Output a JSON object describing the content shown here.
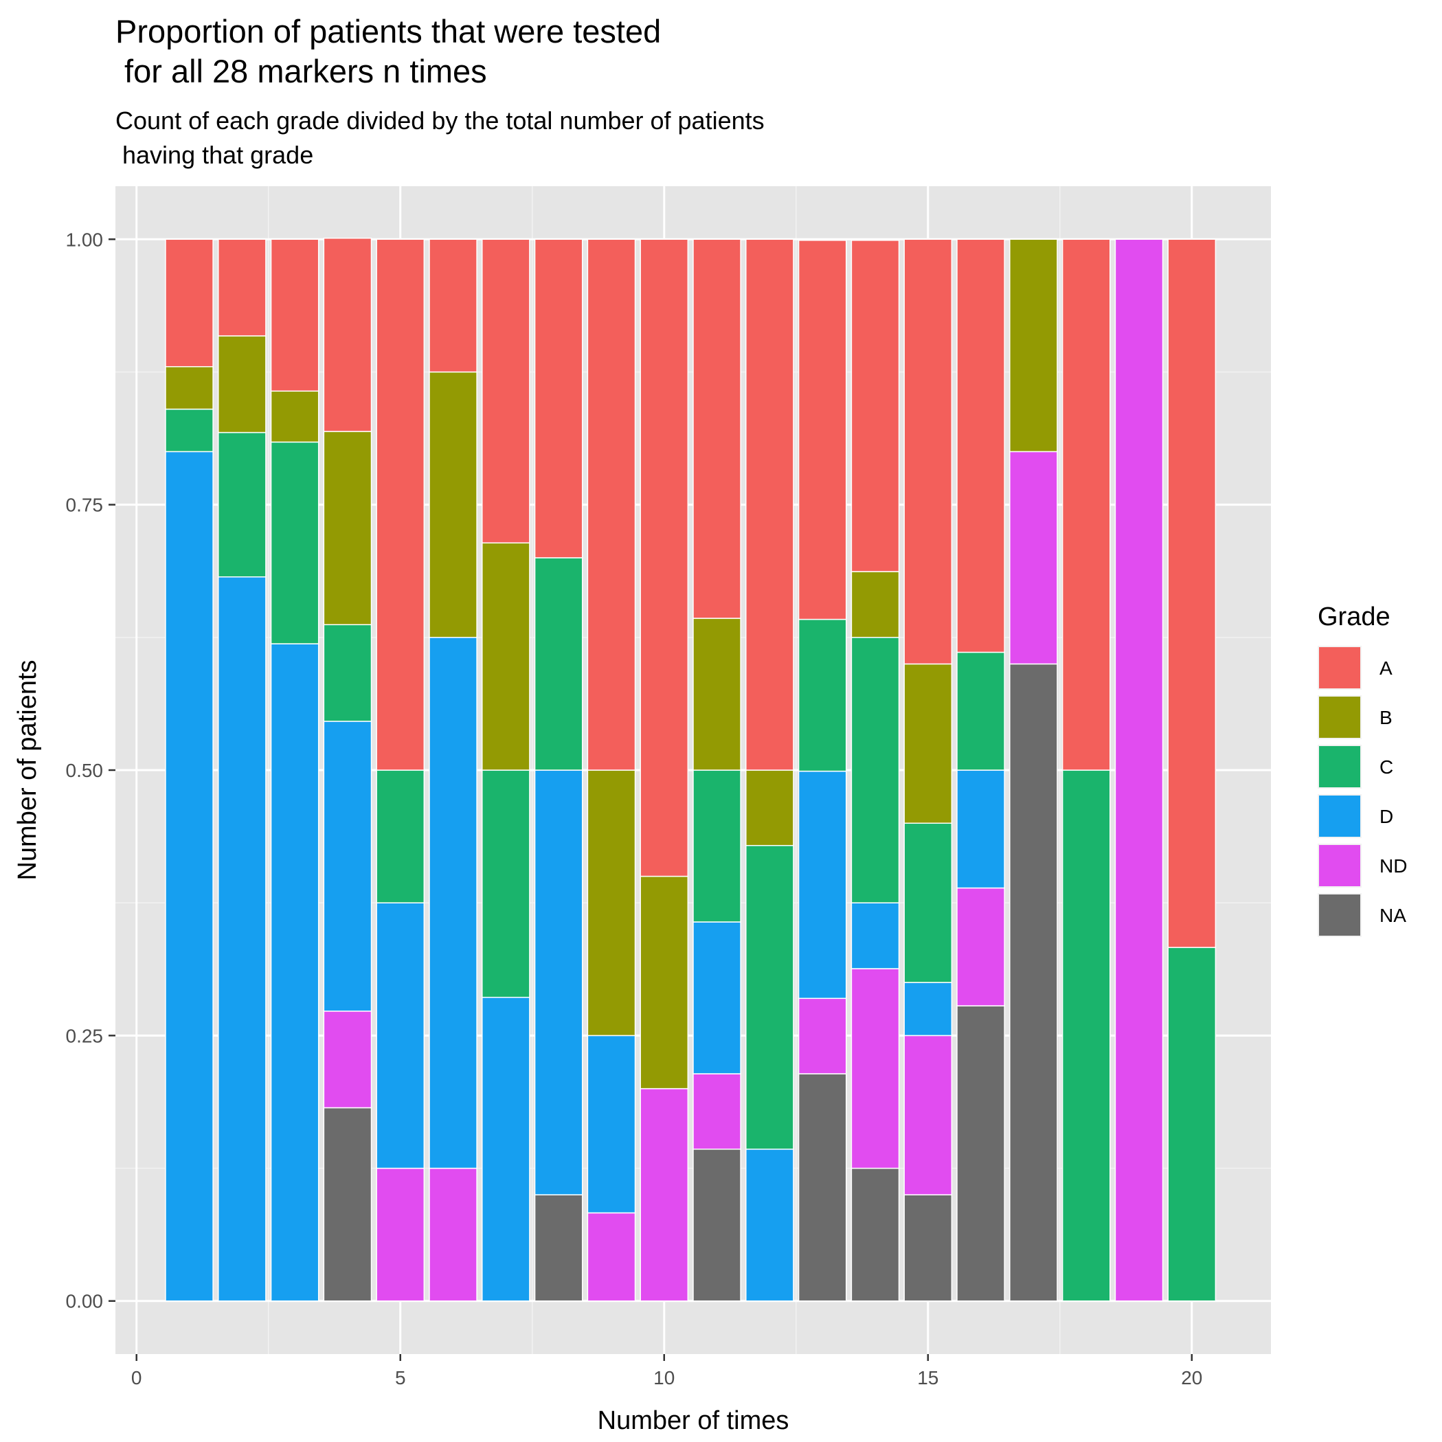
{
  "chart_data": {
    "type": "bar",
    "stacked": true,
    "title_lines": [
      "Proportion of patients that were tested",
      " for all 28 markers n times"
    ],
    "subtitle_lines": [
      "Count of each grade divided by the total number of patients",
      " having that grade"
    ],
    "xlabel": "Number of times",
    "ylabel": "Number of patients",
    "xlim": [
      -0.4,
      21.5
    ],
    "ylim": [
      -0.05,
      1.05
    ],
    "x_ticks": [
      0,
      5,
      10,
      15,
      20
    ],
    "x_tick_labels": [
      "0",
      "5",
      "10",
      "15",
      "20"
    ],
    "y_ticks": [
      0,
      0.25,
      0.5,
      0.75,
      1.0
    ],
    "y_tick_labels": [
      "0.00",
      "0.25",
      "0.50",
      "0.75",
      "1.00"
    ],
    "grid": true,
    "background": "#e5e5e5",
    "legend": {
      "title": "Grade",
      "position": "right",
      "items": [
        {
          "label": "A",
          "color": "#f35f5b"
        },
        {
          "label": "B",
          "color": "#939a03"
        },
        {
          "label": "C",
          "color": "#1ab46c"
        },
        {
          "label": "D",
          "color": "#169ff0"
        },
        {
          "label": "ND",
          "color": "#e14cf0"
        },
        {
          "label": "NA",
          "color": "#6b6b6b"
        }
      ]
    },
    "stack_order_bottom_to_top": [
      "NA",
      "ND",
      "D",
      "C",
      "B",
      "A"
    ],
    "x": [
      1,
      2,
      3,
      4,
      5,
      6,
      7,
      8,
      9,
      10,
      11,
      12,
      13,
      14,
      15,
      16,
      17,
      18,
      19,
      20
    ],
    "series": [
      {
        "name": "NA",
        "values": [
          0,
          0,
          0,
          0.182,
          0,
          0,
          0,
          0.1,
          0,
          0,
          0.143,
          0,
          0.214,
          0.125,
          0.1,
          0.278,
          0.6,
          0,
          0,
          0
        ]
      },
      {
        "name": "ND",
        "values": [
          0,
          0,
          0,
          0.091,
          0.125,
          0.125,
          0,
          0,
          0.083,
          0.2,
          0.071,
          0,
          0.071,
          0.188,
          0.15,
          0.111,
          0.2,
          0,
          1.0,
          0
        ]
      },
      {
        "name": "D",
        "values": [
          0.8,
          0.682,
          0.619,
          0.273,
          0.25,
          0.5,
          0.286,
          0.4,
          0.167,
          0,
          0.143,
          0.143,
          0.214,
          0.062,
          0.05,
          0.111,
          0,
          0,
          0,
          0
        ]
      },
      {
        "name": "C",
        "values": [
          0.04,
          0.136,
          0.19,
          0.091,
          0.125,
          0,
          0.214,
          0.2,
          0,
          0,
          0.143,
          0.286,
          0.143,
          0.25,
          0.15,
          0.111,
          0,
          0.5,
          0,
          0.333
        ]
      },
      {
        "name": "B",
        "values": [
          0.04,
          0.091,
          0.048,
          0.182,
          0,
          0.25,
          0.214,
          0,
          0.25,
          0.2,
          0.143,
          0.071,
          0,
          0.062,
          0.15,
          0,
          0.2,
          0,
          0,
          0
        ]
      },
      {
        "name": "A",
        "values": [
          0.12,
          0.091,
          0.143,
          0.182,
          0.5,
          0.125,
          0.286,
          0.3,
          0.5,
          0.6,
          0.357,
          0.5,
          0.357,
          0.312,
          0.4,
          0.389,
          0,
          0.5,
          0,
          0.667
        ]
      }
    ]
  }
}
